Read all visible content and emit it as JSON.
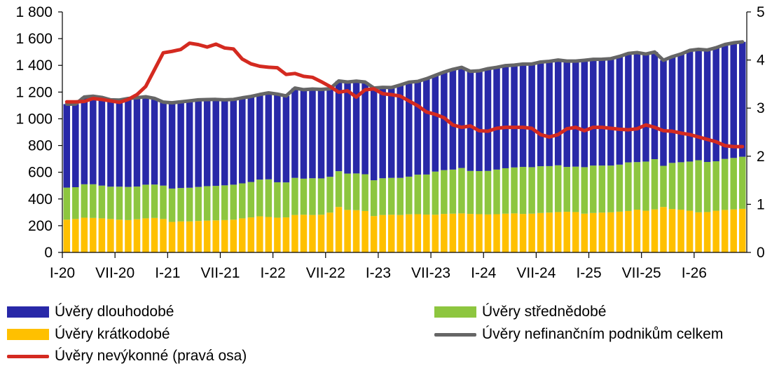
{
  "chart_data": {
    "type": "bar",
    "stacked": true,
    "x": [
      "I-20",
      "II-20",
      "III-20",
      "IV-20",
      "V-20",
      "VI-20",
      "VII-20",
      "VIII-20",
      "IX-20",
      "X-20",
      "XI-20",
      "XII-20",
      "I-21",
      "II-21",
      "III-21",
      "IV-21",
      "V-21",
      "VI-21",
      "VII-21",
      "VIII-21",
      "IX-21",
      "X-21",
      "XI-21",
      "XII-21",
      "I-22",
      "II-22",
      "III-22",
      "IV-22",
      "V-22",
      "VI-22",
      "VII-22",
      "VIII-22",
      "IX-22",
      "X-22",
      "XI-22",
      "XII-22",
      "I-23",
      "II-23",
      "III-23",
      "IV-23",
      "V-23",
      "VI-23",
      "VII-23",
      "VIII-23",
      "IX-23",
      "X-23",
      "XI-23",
      "XII-23",
      "I-24",
      "II-24",
      "III-24",
      "IV-24",
      "V-24",
      "VI-24",
      "VII-24",
      "VIII-24",
      "IX-24",
      "X-24",
      "XI-24",
      "XII-24",
      "I-25",
      "II-25",
      "III-25",
      "IV-25",
      "V-25",
      "VI-25",
      "VII-25",
      "VIII-25",
      "IX-25",
      "X-25",
      "XI-25",
      "XII-25",
      "I-26",
      "II-26",
      "III-26",
      "IV-26",
      "V-26",
      "VI-26"
    ],
    "x_tick_labels": [
      "I-20",
      "VII-20",
      "I-21",
      "VII-21",
      "I-22",
      "VII-22",
      "I-23",
      "VII-23",
      "I-24",
      "VII-24",
      "I-25",
      "VII-25",
      "I-26"
    ],
    "series": [
      {
        "name": "Úvěry krátkodobé",
        "kind": "bar",
        "color": "#FFC000",
        "axis": "left",
        "values": [
          245,
          250,
          260,
          258,
          255,
          250,
          245,
          242,
          248,
          255,
          258,
          250,
          228,
          232,
          232,
          235,
          238,
          240,
          242,
          245,
          255,
          262,
          270,
          265,
          260,
          262,
          280,
          282,
          280,
          282,
          298,
          340,
          318,
          316,
          310,
          272,
          280,
          282,
          280,
          285,
          286,
          283,
          282,
          288,
          290,
          292,
          288,
          286,
          284,
          286,
          290,
          292,
          288,
          290,
          295,
          298,
          302,
          304,
          302,
          290,
          295,
          298,
          300,
          305,
          310,
          320,
          312,
          322,
          340,
          325,
          320,
          312,
          300,
          302,
          312,
          318,
          322,
          326
        ]
      },
      {
        "name": "Úvěry střednědobé",
        "kind": "bar",
        "color": "#8DC63F",
        "axis": "left",
        "values": [
          240,
          238,
          250,
          252,
          245,
          242,
          247,
          248,
          245,
          252,
          250,
          250,
          250,
          250,
          252,
          255,
          258,
          258,
          260,
          262,
          262,
          265,
          275,
          282,
          265,
          262,
          278,
          270,
          275,
          272,
          268,
          268,
          272,
          275,
          275,
          268,
          275,
          276,
          278,
          282,
          296,
          300,
          323,
          328,
          330,
          340,
          322,
          323,
          326,
          334,
          340,
          344,
          352,
          348,
          350,
          348,
          350,
          336,
          340,
          348,
          355,
          352,
          350,
          352,
          364,
          356,
          368,
          376,
          308,
          345,
          355,
          368,
          390,
          375,
          370,
          382,
          385,
          390
        ]
      },
      {
        "name": "Úvěry dlouhodobé",
        "kind": "bar",
        "color": "#2828A8",
        "axis": "left",
        "values": [
          625,
          622,
          653,
          659,
          660,
          650,
          648,
          662,
          665,
          658,
          645,
          625,
          642,
          645,
          650,
          652,
          648,
          647,
          640,
          638,
          640,
          640,
          637,
          647,
          660,
          647,
          672,
          666,
          668,
          666,
          659,
          675,
          685,
          691,
          690,
          690,
          680,
          676,
          695,
          707,
          698,
          717,
          720,
          734,
          750,
          753,
          745,
          750,
          765,
          765,
          768,
          766,
          770,
          772,
          780,
          784,
          788,
          792,
          790,
          800,
          795,
          796,
          800,
          810,
          815,
          820,
          805,
          802,
          790,
          795,
          810,
          832,
          830,
          838,
          850,
          856,
          862,
          860
        ]
      },
      {
        "name": "Úvěry nefinančním podnikům celkem",
        "kind": "line",
        "color": "#666666",
        "axis": "left",
        "values": [
          1110,
          1110,
          1163,
          1169,
          1160,
          1142,
          1140,
          1152,
          1158,
          1165,
          1153,
          1125,
          1120,
          1127,
          1134,
          1142,
          1144,
          1145,
          1142,
          1145,
          1157,
          1167,
          1182,
          1194,
          1185,
          1171,
          1230,
          1218,
          1223,
          1220,
          1225,
          1283,
          1275,
          1282,
          1275,
          1230,
          1235,
          1234,
          1253,
          1274,
          1280,
          1300,
          1325,
          1350,
          1370,
          1385,
          1355,
          1359,
          1375,
          1385,
          1398,
          1402,
          1410,
          1410,
          1425,
          1430,
          1440,
          1432,
          1432,
          1438,
          1445,
          1446,
          1450,
          1467,
          1489,
          1496,
          1485,
          1500,
          1438,
          1465,
          1485,
          1512,
          1520,
          1515,
          1532,
          1556,
          1569,
          1576
        ]
      },
      {
        "name": "Úvěry nevýkonné (pravá osa)",
        "kind": "line",
        "color": "#D42A20",
        "axis": "right",
        "values": [
          3.13,
          3.13,
          3.14,
          3.2,
          3.18,
          3.15,
          3.12,
          3.18,
          3.28,
          3.45,
          3.8,
          4.15,
          4.18,
          4.22,
          4.35,
          4.32,
          4.27,
          4.33,
          4.25,
          4.23,
          4.02,
          3.92,
          3.87,
          3.85,
          3.84,
          3.7,
          3.72,
          3.66,
          3.64,
          3.55,
          3.45,
          3.33,
          3.36,
          3.23,
          3.38,
          3.4,
          3.3,
          3.28,
          3.25,
          3.15,
          3.05,
          2.92,
          2.87,
          2.8,
          2.65,
          2.6,
          2.63,
          2.53,
          2.52,
          2.58,
          2.6,
          2.6,
          2.6,
          2.58,
          2.45,
          2.4,
          2.45,
          2.57,
          2.6,
          2.53,
          2.6,
          2.6,
          2.58,
          2.56,
          2.55,
          2.57,
          2.65,
          2.6,
          2.53,
          2.52,
          2.48,
          2.45,
          2.4,
          2.35,
          2.3,
          2.22,
          2.2,
          2.2
        ]
      }
    ],
    "ylim": [
      0,
      1800
    ],
    "y_ticks": [
      "0",
      "200",
      "400",
      "600",
      "800",
      "1 000",
      "1 200",
      "1 400",
      "1 600",
      "1 800"
    ],
    "y2lim": [
      0,
      5
    ],
    "y2_ticks": [
      "0",
      "1",
      "2",
      "3",
      "4",
      "5"
    ],
    "grid": false,
    "legend_placement": "bottom"
  },
  "legend": {
    "long_term": {
      "label": "Úvěry dlouhodobé",
      "color": "#2828A8"
    },
    "medium_term": {
      "label": "Úvěry střednědobé",
      "color": "#8DC63F"
    },
    "short_term": {
      "label": "Úvěry krátkodobé",
      "color": "#FFC000"
    },
    "total": {
      "label": "Úvěry nefinančním podnikům celkem",
      "color": "#666666"
    },
    "npl": {
      "label": "Úvěry nevýkonné (pravá osa)",
      "color": "#D42A20"
    }
  }
}
